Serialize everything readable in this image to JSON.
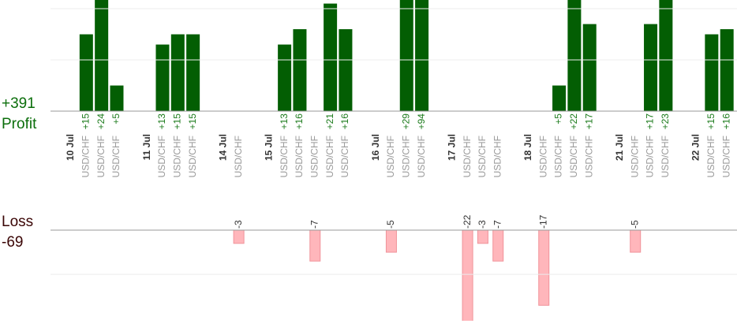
{
  "summary": {
    "profit_total": {
      "value": 391,
      "label": "+391"
    },
    "profit_label": "Profit",
    "loss_label": "Loss",
    "loss_total": -69
  },
  "chart_data": {
    "type": "bar",
    "profit_ylim": [
      0,
      21.7
    ],
    "profit_grid": [
      10,
      20
    ],
    "loss_ylim": [
      0,
      -20.5
    ],
    "loss_grid": [
      -10
    ],
    "profit_color": "#035e03",
    "loss_color": "#ffb6bb",
    "columns": [
      {
        "date": "10 Jul"
      },
      {
        "pair": "USD/CHF",
        "value": 15,
        "value_label": "+15"
      },
      {
        "pair": "USD/CHF",
        "value": 24,
        "value_label": "+24"
      },
      {
        "pair": "USD/CHF",
        "value": 5,
        "value_label": "+5"
      },
      null,
      {
        "date": "11 Jul"
      },
      {
        "pair": "USD/CHF",
        "value": 13,
        "value_label": "+13"
      },
      {
        "pair": "USD/CHF",
        "value": 15,
        "value_label": "+15"
      },
      {
        "pair": "USD/CHF",
        "value": 15,
        "value_label": "+15"
      },
      null,
      {
        "date": "14 Jul"
      },
      {
        "pair": "USD/CHF",
        "value": -3
      },
      null,
      {
        "date": "15 Jul"
      },
      {
        "pair": "USD/CHF",
        "value": 13,
        "value_label": "+13"
      },
      {
        "pair": "USD/CHF",
        "value": 16,
        "value_label": "+16"
      },
      {
        "pair": "USD/CHF",
        "value": -7
      },
      {
        "pair": "USD/CHF",
        "value": 21,
        "value_label": "+21"
      },
      {
        "pair": "USD/CHF",
        "value": 16,
        "value_label": "+16"
      },
      null,
      {
        "date": "16 Jul"
      },
      {
        "pair": "USD/CHF",
        "value": -5
      },
      {
        "pair": "USD/CHF",
        "value": 29,
        "value_label": "+29"
      },
      {
        "pair": "USD/CHF",
        "value": 94,
        "value_label": "+94"
      },
      null,
      {
        "date": "17 Jul"
      },
      {
        "pair": "USD/CHF",
        "value": -22
      },
      {
        "pair": "USD/CHF",
        "value": -3
      },
      {
        "pair": "USD/CHF",
        "value": -7
      },
      null,
      {
        "date": "18 Jul"
      },
      {
        "pair": "USD/CHF",
        "value": -17
      },
      {
        "pair": "USD/CHF",
        "value": 5,
        "value_label": "+5"
      },
      {
        "pair": "USD/CHF",
        "value": 22,
        "value_label": "+22"
      },
      {
        "pair": "USD/CHF",
        "value": 17,
        "value_label": "+17"
      },
      null,
      {
        "date": "21 Jul"
      },
      {
        "pair": "USD/CHF",
        "value": -5
      },
      {
        "pair": "USD/CHF",
        "value": 17,
        "value_label": "+17"
      },
      {
        "pair": "USD/CHF",
        "value": 23,
        "value_label": "+23"
      },
      null,
      {
        "date": "22 Jul"
      },
      {
        "pair": "USD/CHF",
        "value": 15,
        "value_label": "+15"
      },
      {
        "pair": "USD/CHF",
        "value": 16,
        "value_label": "+16"
      }
    ]
  }
}
